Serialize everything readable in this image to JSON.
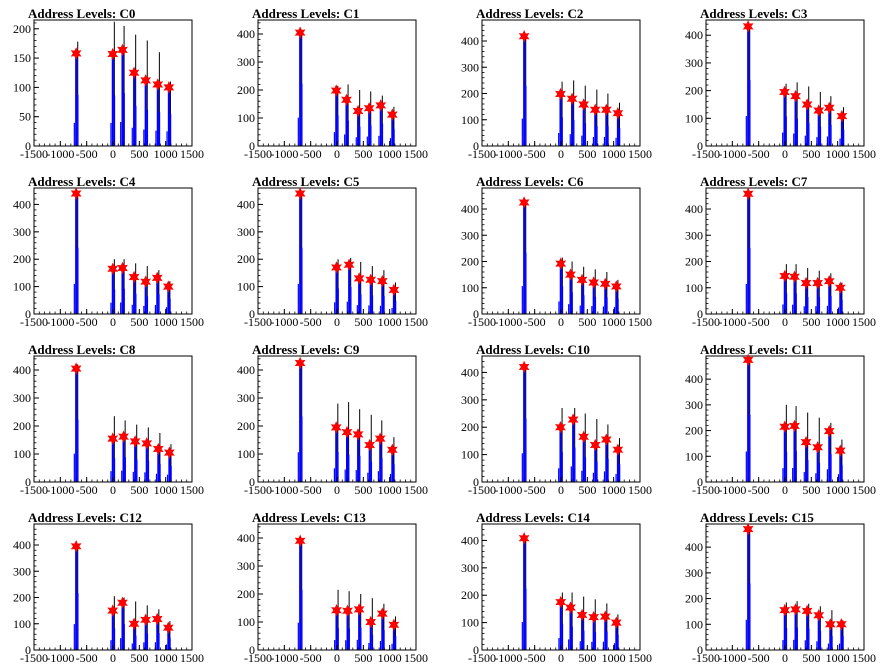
{
  "chart_data": [
    {
      "type": "histogram",
      "title": "Address Levels: C0",
      "x_ticks": [
        "-1500",
        "-1000",
        "-500",
        "0",
        "500",
        "1000",
        "1500"
      ],
      "y_ticks": [
        "0",
        "50",
        "100",
        "150",
        "200"
      ],
      "xlim": [
        -1500,
        1500
      ],
      "ylim": [
        0,
        215
      ],
      "peaks": [
        {
          "x": -700,
          "y": 158
        },
        {
          "x": -5,
          "y": 157
        },
        {
          "x": 180,
          "y": 164
        },
        {
          "x": 400,
          "y": 125
        },
        {
          "x": 620,
          "y": 112
        },
        {
          "x": 850,
          "y": 105
        },
        {
          "x": 1060,
          "y": 100
        }
      ],
      "black_heights": [
        178,
        212,
        205,
        190,
        180,
        160,
        110
      ]
    },
    {
      "type": "histogram",
      "title": "Address Levels: C1",
      "x_ticks": [
        "-1500",
        "-1000",
        "-500",
        "0",
        "500",
        "1000",
        "1500"
      ],
      "y_ticks": [
        "0",
        "100",
        "200",
        "300",
        "400"
      ],
      "xlim": [
        -1500,
        1500
      ],
      "ylim": [
        0,
        450
      ],
      "peaks": [
        {
          "x": -700,
          "y": 405
        },
        {
          "x": -15,
          "y": 198
        },
        {
          "x": 180,
          "y": 165
        },
        {
          "x": 400,
          "y": 125
        },
        {
          "x": 610,
          "y": 135
        },
        {
          "x": 830,
          "y": 145
        },
        {
          "x": 1050,
          "y": 112
        }
      ],
      "black_heights": [
        415,
        215,
        220,
        200,
        195,
        180,
        140
      ]
    },
    {
      "type": "histogram",
      "title": "Address Levels: C2",
      "x_ticks": [
        "-1500",
        "-1000",
        "-500",
        "0",
        "500",
        "1000",
        "1500"
      ],
      "y_ticks": [
        "0",
        "100",
        "200",
        "300",
        "400"
      ],
      "xlim": [
        -1500,
        1500
      ],
      "ylim": [
        0,
        480
      ],
      "peaks": [
        {
          "x": -700,
          "y": 418
        },
        {
          "x": -10,
          "y": 198
        },
        {
          "x": 210,
          "y": 180
        },
        {
          "x": 430,
          "y": 158
        },
        {
          "x": 650,
          "y": 138
        },
        {
          "x": 860,
          "y": 138
        },
        {
          "x": 1080,
          "y": 125
        }
      ],
      "black_heights": [
        425,
        245,
        250,
        230,
        215,
        200,
        165
      ]
    },
    {
      "type": "histogram",
      "title": "Address Levels: C3",
      "x_ticks": [
        "-1500",
        "-1000",
        "-500",
        "0",
        "500",
        "1000",
        "1500"
      ],
      "y_ticks": [
        "0",
        "100",
        "200",
        "300",
        "400"
      ],
      "xlim": [
        -1500,
        1500
      ],
      "ylim": [
        0,
        455
      ],
      "peaks": [
        {
          "x": -700,
          "y": 432
        },
        {
          "x": -10,
          "y": 195
        },
        {
          "x": 200,
          "y": 180
        },
        {
          "x": 420,
          "y": 150
        },
        {
          "x": 640,
          "y": 128
        },
        {
          "x": 840,
          "y": 138
        },
        {
          "x": 1080,
          "y": 108
        }
      ],
      "black_heights": [
        440,
        225,
        230,
        215,
        195,
        180,
        140
      ]
    },
    {
      "type": "histogram",
      "title": "Address Levels: C4",
      "x_ticks": [
        "-1500",
        "-1000",
        "-500",
        "0",
        "500",
        "1000",
        "1500"
      ],
      "y_ticks": [
        "0",
        "100",
        "200",
        "300",
        "400"
      ],
      "xlim": [
        -1500,
        1500
      ],
      "ylim": [
        0,
        460
      ],
      "peaks": [
        {
          "x": -700,
          "y": 440
        },
        {
          "x": -5,
          "y": 165
        },
        {
          "x": 180,
          "y": 168
        },
        {
          "x": 400,
          "y": 135
        },
        {
          "x": 620,
          "y": 118
        },
        {
          "x": 840,
          "y": 132
        },
        {
          "x": 1050,
          "y": 100
        }
      ],
      "black_heights": [
        440,
        200,
        200,
        185,
        175,
        160,
        120
      ]
    },
    {
      "type": "histogram",
      "title": "Address Levels: C5",
      "x_ticks": [
        "-1500",
        "-1000",
        "-500",
        "0",
        "500",
        "1000",
        "1500"
      ],
      "y_ticks": [
        "0",
        "100",
        "200",
        "300",
        "400"
      ],
      "xlim": [
        -1500,
        1500
      ],
      "ylim": [
        0,
        460
      ],
      "peaks": [
        {
          "x": -700,
          "y": 440
        },
        {
          "x": -10,
          "y": 170
        },
        {
          "x": 230,
          "y": 180
        },
        {
          "x": 420,
          "y": 130
        },
        {
          "x": 640,
          "y": 125
        },
        {
          "x": 860,
          "y": 120
        },
        {
          "x": 1080,
          "y": 88
        }
      ],
      "black_heights": [
        440,
        200,
        205,
        190,
        175,
        160,
        115
      ]
    },
    {
      "type": "histogram",
      "title": "Address Levels: C6",
      "x_ticks": [
        "-1500",
        "-1000",
        "-500",
        "0",
        "500",
        "1000",
        "1500"
      ],
      "y_ticks": [
        "0",
        "100",
        "200",
        "300",
        "400"
      ],
      "xlim": [
        -1500,
        1500
      ],
      "ylim": [
        0,
        480
      ],
      "peaks": [
        {
          "x": -700,
          "y": 425
        },
        {
          "x": -5,
          "y": 192
        },
        {
          "x": 180,
          "y": 150
        },
        {
          "x": 400,
          "y": 130
        },
        {
          "x": 620,
          "y": 120
        },
        {
          "x": 840,
          "y": 115
        },
        {
          "x": 1050,
          "y": 105
        }
      ],
      "black_heights": [
        430,
        215,
        200,
        180,
        170,
        160,
        130
      ]
    },
    {
      "type": "histogram",
      "title": "Address Levels: C7",
      "x_ticks": [
        "-1500",
        "-1000",
        "-500",
        "0",
        "500",
        "1000",
        "1500"
      ],
      "y_ticks": [
        "0",
        "100",
        "200",
        "300",
        "400"
      ],
      "xlim": [
        -1500,
        1500
      ],
      "ylim": [
        0,
        480
      ],
      "peaks": [
        {
          "x": -700,
          "y": 458
        },
        {
          "x": -5,
          "y": 145
        },
        {
          "x": 180,
          "y": 142
        },
        {
          "x": 400,
          "y": 118
        },
        {
          "x": 620,
          "y": 118
        },
        {
          "x": 840,
          "y": 125
        },
        {
          "x": 1050,
          "y": 100
        }
      ],
      "black_heights": [
        458,
        190,
        190,
        175,
        165,
        155,
        120
      ]
    },
    {
      "type": "histogram",
      "title": "Address Levels: C8",
      "x_ticks": [
        "-1500",
        "-1000",
        "-500",
        "0",
        "500",
        "1000",
        "1500"
      ],
      "y_ticks": [
        "0",
        "100",
        "200",
        "300",
        "400"
      ],
      "xlim": [
        -1500,
        1500
      ],
      "ylim": [
        0,
        450
      ],
      "peaks": [
        {
          "x": -700,
          "y": 405
        },
        {
          "x": -5,
          "y": 155
        },
        {
          "x": 200,
          "y": 162
        },
        {
          "x": 420,
          "y": 145
        },
        {
          "x": 640,
          "y": 138
        },
        {
          "x": 860,
          "y": 118
        },
        {
          "x": 1070,
          "y": 105
        }
      ],
      "black_heights": [
        420,
        235,
        220,
        205,
        195,
        175,
        135
      ]
    },
    {
      "type": "histogram",
      "title": "Address Levels: C9",
      "x_ticks": [
        "-1500",
        "-1000",
        "-500",
        "0",
        "500",
        "1000",
        "1500"
      ],
      "y_ticks": [
        "0",
        "100",
        "200",
        "300",
        "400"
      ],
      "xlim": [
        -1500,
        1500
      ],
      "ylim": [
        0,
        450
      ],
      "peaks": [
        {
          "x": -700,
          "y": 425
        },
        {
          "x": -15,
          "y": 195
        },
        {
          "x": 190,
          "y": 178
        },
        {
          "x": 400,
          "y": 170
        },
        {
          "x": 620,
          "y": 132
        },
        {
          "x": 820,
          "y": 155
        },
        {
          "x": 1050,
          "y": 115
        }
      ],
      "black_heights": [
        430,
        280,
        285,
        260,
        240,
        220,
        160
      ]
    },
    {
      "type": "histogram",
      "title": "Address Levels: C10",
      "x_ticks": [
        "-1500",
        "-1000",
        "-500",
        "0",
        "500",
        "1000",
        "1500"
      ],
      "y_ticks": [
        "0",
        "100",
        "200",
        "300",
        "400"
      ],
      "xlim": [
        -1500,
        1500
      ],
      "ylim": [
        0,
        460
      ],
      "peaks": [
        {
          "x": -700,
          "y": 420
        },
        {
          "x": -10,
          "y": 200
        },
        {
          "x": 230,
          "y": 228
        },
        {
          "x": 430,
          "y": 165
        },
        {
          "x": 650,
          "y": 135
        },
        {
          "x": 860,
          "y": 155
        },
        {
          "x": 1080,
          "y": 118
        }
      ],
      "black_heights": [
        430,
        270,
        270,
        250,
        230,
        210,
        160
      ]
    },
    {
      "type": "histogram",
      "title": "Address Levels: C11",
      "x_ticks": [
        "-1500",
        "-1000",
        "-500",
        "0",
        "500",
        "1000",
        "1500"
      ],
      "y_ticks": [
        "0",
        "100",
        "200",
        "300",
        "400"
      ],
      "xlim": [
        -1500,
        1500
      ],
      "ylim": [
        0,
        490
      ],
      "peaks": [
        {
          "x": -700,
          "y": 475
        },
        {
          "x": -5,
          "y": 215
        },
        {
          "x": 180,
          "y": 218
        },
        {
          "x": 400,
          "y": 155
        },
        {
          "x": 620,
          "y": 135
        },
        {
          "x": 840,
          "y": 198
        },
        {
          "x": 1050,
          "y": 122
        }
      ],
      "black_heights": [
        475,
        300,
        295,
        270,
        250,
        230,
        165
      ]
    },
    {
      "type": "histogram",
      "title": "Address Levels: C12",
      "x_ticks": [
        "-1500",
        "-1000",
        "-500",
        "0",
        "500",
        "1000",
        "1500"
      ],
      "y_ticks": [
        "0",
        "100",
        "200",
        "300",
        "400"
      ],
      "xlim": [
        -1500,
        1500
      ],
      "ylim": [
        0,
        480
      ],
      "peaks": [
        {
          "x": -700,
          "y": 395
        },
        {
          "x": -5,
          "y": 150
        },
        {
          "x": 180,
          "y": 180
        },
        {
          "x": 400,
          "y": 100
        },
        {
          "x": 620,
          "y": 115
        },
        {
          "x": 840,
          "y": 118
        },
        {
          "x": 1050,
          "y": 85
        }
      ],
      "black_heights": [
        400,
        205,
        200,
        185,
        170,
        155,
        110
      ]
    },
    {
      "type": "histogram",
      "title": "Address Levels: C13",
      "x_ticks": [
        "-1500",
        "-1000",
        "-500",
        "0",
        "500",
        "1000",
        "1500"
      ],
      "y_ticks": [
        "0",
        "100",
        "200",
        "300",
        "400"
      ],
      "xlim": [
        -1500,
        1500
      ],
      "ylim": [
        0,
        450
      ],
      "peaks": [
        {
          "x": -700,
          "y": 390
        },
        {
          "x": -10,
          "y": 142
        },
        {
          "x": 200,
          "y": 140
        },
        {
          "x": 420,
          "y": 145
        },
        {
          "x": 640,
          "y": 100
        },
        {
          "x": 860,
          "y": 130
        },
        {
          "x": 1080,
          "y": 90
        }
      ],
      "black_heights": [
        395,
        215,
        210,
        200,
        185,
        165,
        120
      ]
    },
    {
      "type": "histogram",
      "title": "Address Levels: C14",
      "x_ticks": [
        "-1500",
        "-1000",
        "-500",
        "0",
        "500",
        "1000",
        "1500"
      ],
      "y_ticks": [
        "0",
        "100",
        "200",
        "300",
        "400"
      ],
      "xlim": [
        -1500,
        1500
      ],
      "ylim": [
        0,
        460
      ],
      "peaks": [
        {
          "x": -700,
          "y": 408
        },
        {
          "x": -5,
          "y": 175
        },
        {
          "x": 180,
          "y": 155
        },
        {
          "x": 400,
          "y": 128
        },
        {
          "x": 620,
          "y": 120
        },
        {
          "x": 840,
          "y": 122
        },
        {
          "x": 1050,
          "y": 100
        }
      ],
      "black_heights": [
        410,
        210,
        210,
        195,
        185,
        170,
        130
      ]
    },
    {
      "type": "histogram",
      "title": "Address Levels: C15",
      "x_ticks": [
        "-1500",
        "-1000",
        "-500",
        "0",
        "500",
        "1000",
        "1500"
      ],
      "y_ticks": [
        "0",
        "100",
        "200",
        "300",
        "400"
      ],
      "xlim": [
        -1500,
        1500
      ],
      "ylim": [
        0,
        490
      ],
      "peaks": [
        {
          "x": -700,
          "y": 470
        },
        {
          "x": -5,
          "y": 155
        },
        {
          "x": 200,
          "y": 158
        },
        {
          "x": 420,
          "y": 152
        },
        {
          "x": 640,
          "y": 135
        },
        {
          "x": 860,
          "y": 100
        },
        {
          "x": 1070,
          "y": 100
        }
      ],
      "black_heights": [
        475,
        185,
        190,
        180,
        170,
        155,
        115
      ]
    }
  ],
  "colors": {
    "histogram_fill": "#0000ff",
    "overlay_line": "#000000",
    "peak_marker": "#ff0000",
    "axis": "#000000"
  }
}
